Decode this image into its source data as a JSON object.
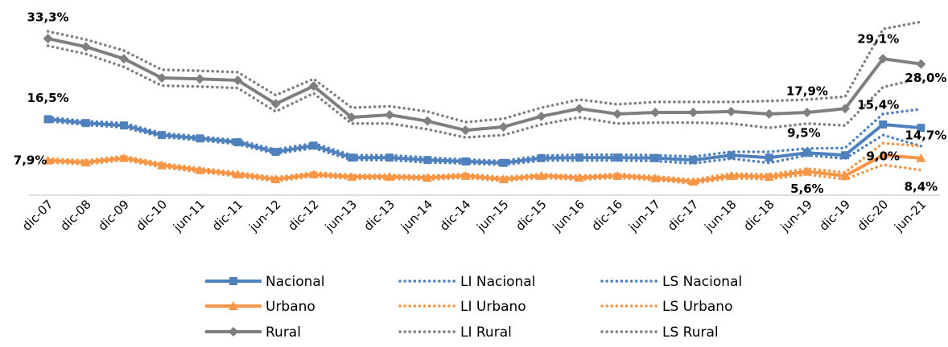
{
  "chart_data": {
    "type": "line",
    "categories": [
      "dic-07",
      "dic-08",
      "dic-09",
      "dic-10",
      "jun-11",
      "dic-11",
      "jun-12",
      "dic-12",
      "jun-13",
      "dic-13",
      "jun-14",
      "dic-14",
      "jun-15",
      "dic-15",
      "jun-16",
      "dic-16",
      "jun-17",
      "dic-17",
      "jun-18",
      "dic-18",
      "jun-19",
      "dic-19",
      "dic-20",
      "jun-21"
    ],
    "ylim": [
      0,
      40
    ],
    "series": [
      {
        "name": "Nacional",
        "color": "#4f81bd",
        "style": "solid",
        "marker": "square",
        "values": [
          16.5,
          15.7,
          15.2,
          13.2,
          12.5,
          11.7,
          9.7,
          11.0,
          8.5,
          8.5,
          8.0,
          7.7,
          7.4,
          8.4,
          8.5,
          8.5,
          8.4,
          8.0,
          9.0,
          8.5,
          9.5,
          9.0,
          15.4,
          14.7
        ],
        "value_labels": [
          "16,5%",
          null,
          null,
          null,
          null,
          null,
          null,
          null,
          null,
          null,
          null,
          null,
          null,
          null,
          null,
          null,
          null,
          null,
          null,
          null,
          "9,5%",
          null,
          "15,4%",
          "14,7%"
        ]
      },
      {
        "name": "LI Nacional",
        "color": "#4f81bd",
        "style": "dotted",
        "values": [
          16.1,
          15.3,
          14.8,
          12.8,
          12.1,
          11.3,
          9.3,
          10.5,
          8.0,
          8.0,
          7.5,
          7.3,
          7.0,
          7.9,
          7.9,
          7.9,
          7.8,
          7.3,
          8.3,
          7.4,
          9.0,
          8.3,
          13.2,
          10.9
        ]
      },
      {
        "name": "LS Nacional",
        "color": "#4f81bd",
        "style": "dotted",
        "values": [
          16.9,
          16.1,
          15.7,
          13.6,
          12.9,
          12.1,
          10.2,
          11.5,
          9.0,
          9.0,
          8.5,
          8.1,
          7.8,
          8.9,
          9.1,
          9.1,
          9.0,
          8.7,
          9.7,
          9.7,
          10.4,
          10.5,
          17.6,
          18.6
        ]
      },
      {
        "name": "Urbano",
        "color": "#f79646",
        "style": "solid",
        "marker": "triangle",
        "values": [
          7.9,
          7.5,
          8.4,
          6.9,
          5.9,
          5.0,
          4.0,
          5.0,
          4.5,
          4.5,
          4.3,
          4.7,
          4.0,
          4.7,
          4.3,
          4.7,
          4.2,
          3.5,
          4.7,
          4.5,
          5.6,
          4.7,
          9.0,
          8.4
        ],
        "value_labels": [
          "7,9%",
          null,
          null,
          null,
          null,
          null,
          null,
          null,
          null,
          null,
          null,
          null,
          null,
          null,
          null,
          null,
          null,
          null,
          null,
          null,
          "5,6%",
          null,
          "9,0%",
          "8,4%"
        ]
      },
      {
        "name": "LI Urbano",
        "color": "#f79646",
        "style": "dotted",
        "values": [
          7.5,
          7.1,
          8.0,
          6.5,
          5.5,
          4.6,
          3.6,
          4.6,
          4.1,
          4.1,
          3.9,
          4.3,
          3.6,
          4.3,
          3.9,
          4.3,
          3.8,
          3.1,
          4.2,
          4.0,
          5.0,
          4.0,
          7.0,
          5.9
        ]
      },
      {
        "name": "LS Urbano",
        "color": "#f79646",
        "style": "dotted",
        "values": [
          8.3,
          7.9,
          8.8,
          7.3,
          6.3,
          5.4,
          4.4,
          5.4,
          4.9,
          4.9,
          4.7,
          5.1,
          4.4,
          5.1,
          4.7,
          5.1,
          4.6,
          3.9,
          5.2,
          5.0,
          6.2,
          5.4,
          11.5,
          10.9
        ]
      },
      {
        "name": "Rural",
        "color": "#7f7f7f",
        "style": "solid",
        "marker": "diamond",
        "values": [
          33.3,
          31.6,
          29.1,
          25.1,
          24.9,
          24.6,
          19.7,
          23.4,
          16.9,
          17.4,
          16.1,
          14.2,
          14.9,
          17.1,
          18.7,
          17.6,
          17.9,
          17.9,
          18.1,
          17.6,
          17.9,
          18.7,
          29.1,
          28.0
        ],
        "value_labels": [
          "33,3%",
          null,
          null,
          null,
          null,
          null,
          null,
          null,
          null,
          null,
          null,
          null,
          null,
          null,
          null,
          null,
          null,
          null,
          null,
          null,
          "17,9%",
          null,
          "29,1%",
          "28,0%"
        ]
      },
      {
        "name": "LI Rural",
        "color": "#7f7f7f",
        "style": "dotted",
        "values": [
          31.8,
          30.1,
          27.4,
          23.5,
          23.3,
          23.0,
          18.1,
          21.9,
          15.6,
          15.6,
          14.4,
          12.7,
          13.2,
          15.4,
          16.9,
          15.6,
          15.8,
          15.8,
          15.6,
          14.7,
          15.6,
          15.2,
          23.2,
          25.0
        ]
      },
      {
        "name": "LS Rural",
        "color": "#7f7f7f",
        "style": "dotted",
        "values": [
          34.8,
          33.1,
          30.8,
          26.8,
          26.6,
          26.3,
          21.5,
          24.9,
          18.9,
          19.2,
          18.1,
          15.9,
          16.6,
          18.9,
          20.6,
          19.6,
          20.1,
          20.1,
          20.1,
          20.3,
          20.6,
          21.2,
          35.3,
          36.8
        ]
      }
    ]
  }
}
